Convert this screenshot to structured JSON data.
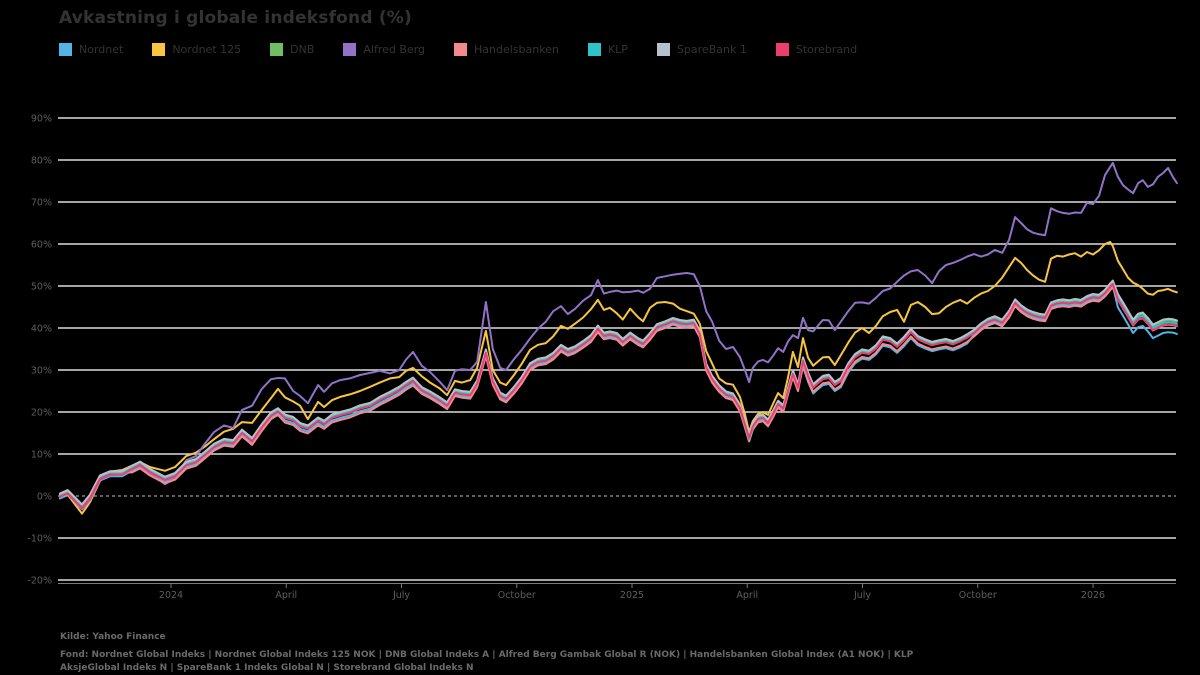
{
  "title": "Avkastning i globale indeksfond (%)",
  "colors": {
    "background": "#000000",
    "title_text": "#333333",
    "legend_text": "#333333",
    "tick_label": "#5e5e5e",
    "grid_line": "#dcdcdc",
    "zero_line": "#9a9a9a",
    "axis_line": "#7a7a7a",
    "footer_text": "#6a6a6a"
  },
  "footer": {
    "source": "Kilde: Yahoo Finance",
    "funds_line1": "Fond: Nordnet Global Indeks | Nordnet Global Indeks 125 NOK | DNB Global Indeks A | Alfred Berg Gambak Global R (NOK) | Handelsbanken Global Index (A1 NOK) | KLP",
    "funds_line2": "AksjeGlobal Indeks N | SpareBank 1 Indeks Global N | Storebrand Global Indeks N"
  },
  "chart_data": {
    "type": "line",
    "title": "Avkastning i globale indeksfond (%)",
    "x_unit": "decimal_year",
    "y_format": "percent",
    "ylim": [
      -20,
      90
    ],
    "grid": true,
    "zero_line_dashed": true,
    "legend_position": "top",
    "x_ticks": [
      {
        "x": 2024.0,
        "label": "2024"
      },
      {
        "x": 2024.25,
        "label": "April"
      },
      {
        "x": 2024.5,
        "label": "July"
      },
      {
        "x": 2024.75,
        "label": "October"
      },
      {
        "x": 2025.0,
        "label": "2025"
      },
      {
        "x": 2025.25,
        "label": "April"
      },
      {
        "x": 2025.5,
        "label": "July"
      },
      {
        "x": 2025.75,
        "label": "October"
      },
      {
        "x": 2026.0,
        "label": "2026"
      }
    ],
    "y_ticks": [
      90,
      80,
      70,
      60,
      50,
      40,
      30,
      20,
      10,
      0,
      -10,
      -20
    ],
    "x": [
      2023.759,
      2023.776,
      2023.807,
      2023.824,
      2023.846,
      2023.868,
      2023.894,
      2023.915,
      2023.933,
      2023.954,
      2023.987,
      2024.009,
      2024.033,
      2024.054,
      2024.074,
      2024.093,
      2024.115,
      2024.135,
      2024.154,
      2024.176,
      2024.197,
      2024.217,
      2024.232,
      2024.247,
      2024.265,
      2024.28,
      2024.297,
      2024.319,
      2024.332,
      2024.349,
      2024.367,
      2024.388,
      2024.41,
      2024.432,
      2024.453,
      2024.475,
      2024.495,
      2024.51,
      2024.525,
      2024.544,
      2024.562,
      2024.583,
      2024.599,
      2024.616,
      2024.631,
      2024.649,
      2024.664,
      2024.683,
      2024.698,
      2024.714,
      2024.727,
      2024.744,
      2024.761,
      2024.779,
      2024.796,
      2024.813,
      2024.829,
      2024.846,
      2024.861,
      2024.876,
      2024.894,
      2024.911,
      2024.926,
      2024.939,
      2024.952,
      2024.967,
      2024.98,
      2024.996,
      2025.013,
      2025.024,
      2025.039,
      2025.054,
      2025.072,
      2025.089,
      2025.104,
      2025.119,
      2025.134,
      2025.147,
      2025.161,
      2025.174,
      2025.189,
      2025.204,
      2025.219,
      2025.234,
      2025.245,
      2025.254,
      2025.262,
      2025.273,
      2025.284,
      2025.295,
      2025.306,
      2025.317,
      2025.328,
      2025.338,
      2025.349,
      2025.36,
      2025.371,
      2025.382,
      2025.393,
      2025.403,
      2025.414,
      2025.427,
      2025.44,
      2025.453,
      2025.469,
      2025.484,
      2025.499,
      2025.514,
      2025.529,
      2025.544,
      2025.56,
      2025.575,
      2025.59,
      2025.605,
      2025.62,
      2025.636,
      2025.651,
      2025.666,
      2025.681,
      2025.696,
      2025.712,
      2025.727,
      2025.742,
      2025.757,
      2025.772,
      2025.787,
      2025.803,
      2025.818,
      2025.831,
      2025.844,
      2025.857,
      2025.87,
      2025.883,
      2025.896,
      2025.909,
      2025.922,
      2025.935,
      2025.948,
      2025.961,
      2025.974,
      2025.987,
      2026.0,
      2026.013,
      2026.026,
      2026.037,
      2026.043,
      2026.054,
      2026.065,
      2026.076,
      2026.087,
      2026.098,
      2026.108,
      2026.119,
      2026.13,
      2026.141,
      2026.152,
      2026.163,
      2026.173,
      2026.182
    ],
    "cluster_base": [
      0,
      0.8,
      -2.6,
      -0.3,
      4.3,
      5.3,
      5.3,
      6.6,
      7.6,
      5.9,
      4.0,
      4.9,
      7.5,
      8.2,
      10.0,
      11.8,
      13.0,
      12.7,
      15.2,
      13.2,
      16.5,
      19.3,
      20.3,
      18.8,
      18.2,
      16.8,
      16.2,
      18.1,
      17.3,
      18.8,
      19.4,
      20.0,
      21.0,
      21.6,
      23.0,
      24.2,
      25.4,
      26.6,
      27.6,
      25.3,
      24.3,
      22.9,
      21.7,
      24.8,
      24.4,
      24.2,
      26.9,
      34.3,
      27.5,
      24.0,
      23.3,
      25.4,
      27.8,
      31.0,
      32.1,
      32.4,
      33.5,
      35.4,
      34.4,
      35.0,
      36.3,
      37.7,
      40.0,
      38.3,
      38.6,
      38.2,
      36.8,
      38.3,
      37.0,
      36.4,
      38.2,
      40.3,
      41.0,
      41.8,
      41.3,
      41.1,
      41.4,
      38.8,
      30.9,
      28.0,
      25.8,
      24.3,
      23.8,
      21.2,
      17.3,
      14.0,
      16.8,
      18.5,
      18.8,
      17.6,
      19.8,
      22.1,
      21.0,
      25.0,
      29.3,
      26.0,
      32.4,
      28.8,
      26.0,
      27.0,
      28.0,
      28.3,
      26.6,
      27.5,
      31.0,
      33.2,
      34.3,
      34.0,
      35.3,
      37.4,
      37.0,
      35.7,
      37.3,
      39.2,
      37.5,
      36.7,
      36.1,
      36.5,
      36.8,
      36.3,
      37.0,
      37.9,
      39.0,
      40.5,
      41.6,
      42.2,
      41.4,
      43.5,
      46.2,
      44.8,
      43.8,
      43.2,
      42.8,
      42.6,
      45.5,
      46.0,
      46.2,
      46.0,
      46.3,
      46.1,
      47.0,
      47.5,
      47.3,
      48.5,
      50.0,
      50.7,
      47.5,
      45.5,
      43.5,
      41.4,
      42.8,
      43.1,
      41.8,
      40.2,
      40.8,
      41.4,
      41.6,
      41.5,
      41.2
    ],
    "series": [
      {
        "name": "Nordnet",
        "color": "#53b5e6",
        "base": "cluster_base",
        "offset": -0.6,
        "offset_overrides": [
          [
            2024.24,
            2024.53,
            -0.8
          ],
          [
            2025.24,
            2025.27,
            -0.9
          ],
          [
            2025.37,
            2025.73,
            -1.6
          ],
          [
            2026.05,
            2026.19,
            -2.6
          ]
        ]
      },
      {
        "name": "Nordnet 125",
        "color": "#f7c53f",
        "values": [
          0,
          0.3,
          -4.2,
          -1.5,
          3.6,
          5.8,
          6.2,
          7.2,
          8.1,
          6.9,
          6.0,
          6.9,
          9.5,
          10.3,
          11.8,
          13.5,
          15.3,
          16.0,
          17.6,
          17.4,
          20.5,
          23.3,
          25.5,
          23.5,
          22.5,
          21.5,
          18.3,
          22.4,
          21.2,
          22.8,
          23.6,
          24.2,
          25.0,
          26.0,
          27.0,
          28.0,
          28.3,
          29.8,
          30.5,
          28.5,
          27.0,
          25.6,
          24.0,
          27.4,
          27.0,
          27.6,
          30.5,
          39.3,
          30.0,
          27.0,
          26.4,
          28.8,
          31.5,
          34.8,
          36.0,
          36.4,
          38.0,
          40.5,
          39.8,
          41.0,
          42.5,
          44.5,
          46.7,
          44.3,
          44.8,
          43.5,
          42.0,
          44.6,
          42.6,
          41.6,
          44.8,
          46.0,
          46.2,
          45.8,
          44.6,
          44.0,
          43.4,
          41.0,
          34.5,
          31.5,
          28.0,
          26.8,
          26.5,
          23.6,
          19.5,
          15.2,
          17.8,
          19.5,
          20.0,
          19.3,
          22.0,
          24.5,
          23.3,
          28.0,
          34.3,
          30.7,
          37.6,
          32.9,
          31.0,
          32.0,
          33.0,
          33.1,
          31.2,
          33.5,
          36.5,
          38.9,
          40.0,
          38.8,
          40.5,
          42.8,
          43.8,
          44.3,
          41.5,
          45.5,
          46.2,
          45.0,
          43.3,
          43.5,
          45.0,
          46.0,
          46.7,
          45.8,
          47.2,
          48.2,
          48.8,
          50.0,
          52.0,
          54.5,
          56.7,
          55.5,
          53.8,
          52.5,
          51.5,
          51.0,
          56.5,
          57.2,
          57.0,
          57.5,
          57.8,
          57.0,
          58.1,
          57.5,
          58.5,
          60.0,
          60.5,
          59.5,
          56.0,
          54.0,
          52.0,
          50.8,
          50.2,
          49.3,
          48.2,
          47.9,
          48.8,
          49.0,
          49.3,
          48.8,
          48.5
        ]
      },
      {
        "name": "DNB",
        "color": "#6fbe63",
        "base": "cluster_base",
        "offset": 0.3
      },
      {
        "name": "Alfred Berg",
        "color": "#9172c6",
        "values": [
          0,
          0.5,
          -3.2,
          -1.0,
          3.8,
          5.0,
          5.2,
          6.4,
          7.3,
          5.4,
          2.8,
          4.3,
          8.5,
          9.5,
          12.5,
          15.2,
          16.8,
          16.2,
          20.5,
          21.5,
          25.5,
          27.8,
          28.1,
          28.0,
          25.0,
          23.8,
          22.1,
          26.4,
          24.8,
          26.8,
          27.6,
          28.0,
          28.8,
          29.3,
          29.8,
          29.2,
          30.0,
          32.5,
          34.3,
          31.0,
          29.5,
          27.2,
          25.2,
          29.8,
          30.2,
          30.0,
          31.9,
          46.2,
          35.0,
          30.5,
          30.0,
          32.6,
          34.8,
          37.5,
          39.8,
          41.5,
          44.0,
          45.2,
          43.3,
          44.5,
          46.5,
          47.8,
          51.4,
          48.2,
          48.6,
          48.9,
          48.5,
          48.6,
          48.9,
          48.4,
          49.3,
          51.9,
          52.3,
          52.7,
          52.9,
          53.1,
          52.8,
          50.0,
          44.0,
          41.5,
          37.0,
          35.0,
          35.5,
          33.1,
          30.0,
          27.1,
          30.5,
          32.0,
          32.4,
          31.8,
          33.4,
          35.2,
          34.3,
          36.7,
          38.3,
          37.6,
          42.4,
          39.5,
          39.2,
          40.5,
          41.9,
          41.8,
          39.5,
          41.5,
          44.0,
          46.0,
          46.1,
          45.8,
          47.2,
          48.8,
          49.4,
          51.0,
          52.5,
          53.5,
          53.8,
          52.5,
          50.7,
          53.5,
          55.0,
          55.5,
          56.2,
          57.0,
          57.6,
          57.0,
          57.5,
          58.6,
          57.9,
          61.0,
          66.4,
          65.0,
          63.5,
          62.7,
          62.3,
          62.1,
          68.5,
          67.8,
          67.4,
          67.2,
          67.5,
          67.4,
          69.8,
          69.5,
          71.5,
          76.4,
          78.3,
          79.3,
          76.0,
          74.0,
          73.0,
          72.1,
          74.5,
          75.2,
          73.6,
          74.2,
          76.0,
          76.9,
          78.1,
          76.0,
          74.5
        ]
      },
      {
        "name": "Handelsbanken",
        "color": "#f48b8b",
        "base": "cluster_base",
        "offset": -1.0,
        "offset_overrides": [
          [
            2023.75,
            2023.9,
            0.5
          ],
          [
            2024.24,
            2024.53,
            -1.3
          ],
          [
            2025.37,
            2025.73,
            -1.2
          ],
          [
            2026.05,
            2026.19,
            -0.8
          ]
        ]
      },
      {
        "name": "KLP",
        "color": "#2cc4c9",
        "base": "cluster_base",
        "offset": 0.0,
        "offset_overrides": [
          [
            2025.24,
            2025.27,
            -0.5
          ],
          [
            2026.05,
            2026.19,
            -0.2
          ]
        ]
      },
      {
        "name": "SpareBank 1",
        "color": "#b4c3cb",
        "base": "cluster_base",
        "offset": 0.6
      },
      {
        "name": "Storebrand",
        "color": "#ec3d72",
        "base": "cluster_base",
        "offset": -0.2,
        "offset_overrides": [
          [
            2026.05,
            2026.19,
            -0.7
          ]
        ]
      }
    ]
  }
}
